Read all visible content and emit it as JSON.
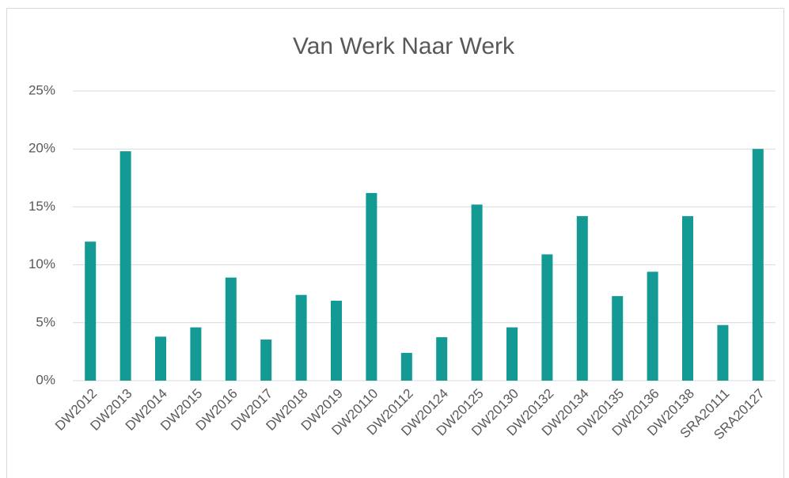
{
  "chart_data": {
    "type": "bar",
    "title": "Van Werk Naar Werk",
    "categories": [
      "DW2012",
      "DW2013",
      "DW2014",
      "DW2015",
      "DW2016",
      "DW2017",
      "DW2018",
      "DW2019",
      "DW20110",
      "DW20112",
      "DW20124",
      "DW20125",
      "DW20130",
      "DW20132",
      "DW20134",
      "DW20135",
      "DW20136",
      "DW20138",
      "SRA20111",
      "SRA20127"
    ],
    "values": [
      12,
      19.8,
      3.8,
      4.6,
      8.9,
      3.55,
      7.4,
      6.9,
      16.2,
      2.4,
      3.75,
      15.2,
      4.6,
      10.9,
      14.2,
      7.3,
      9.4,
      14.2,
      4.8,
      20
    ],
    "color": "#139a94",
    "ylim": [
      0,
      25
    ],
    "yticks": [
      {
        "value": 0,
        "label": "0%"
      },
      {
        "value": 5,
        "label": "5%"
      },
      {
        "value": 10,
        "label": "10%"
      },
      {
        "value": 15,
        "label": "15%"
      },
      {
        "value": 20,
        "label": "20%"
      },
      {
        "value": 25,
        "label": "25%"
      }
    ],
    "grid": true
  }
}
